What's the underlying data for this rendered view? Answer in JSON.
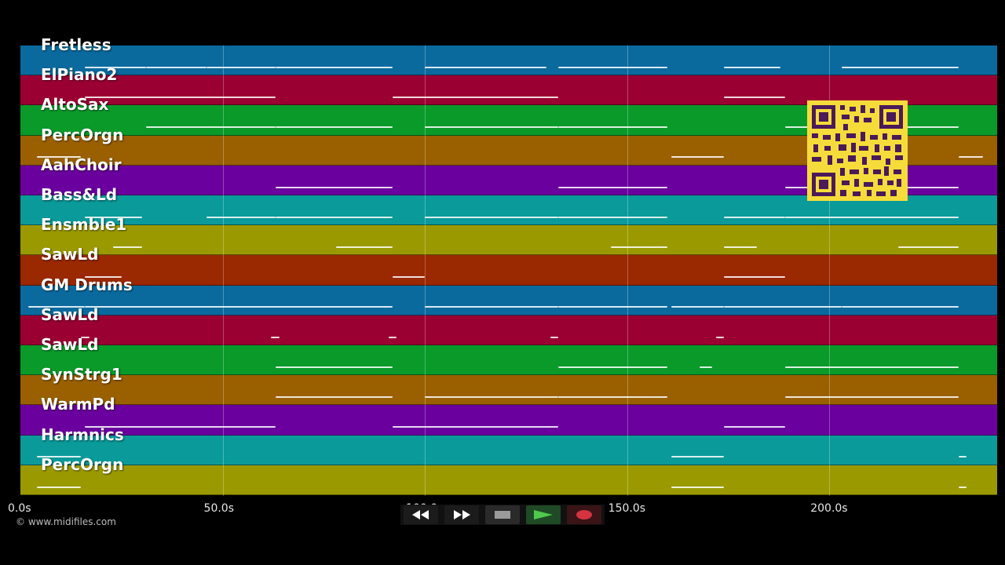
{
  "tracks": [
    {
      "name": "Fretless",
      "color": "#0a6a9e"
    },
    {
      "name": "ElPiano2",
      "color": "#9b0033"
    },
    {
      "name": "AltoSax",
      "color": "#0a9a2a"
    },
    {
      "name": "PercOrgn",
      "color": "#9a6000"
    },
    {
      "name": "AahChoir",
      "color": "#6a009e"
    },
    {
      "name": "Bass&Ld",
      "color": "#0a9a9a"
    },
    {
      "name": "Ensmble1",
      "color": "#9a9a00"
    },
    {
      "name": "SawLd",
      "color": "#9a2800"
    },
    {
      "name": "GM Drums",
      "color": "#0a6a9e"
    },
    {
      "name": "SawLd",
      "color": "#9b0033"
    },
    {
      "name": "SawLd",
      "color": "#0a9a2a"
    },
    {
      "name": "SynStrg1",
      "color": "#9a6000"
    },
    {
      "name": "WarmPd",
      "color": "#6a009e"
    },
    {
      "name": "Harmnics",
      "color": "#0a9a9a"
    },
    {
      "name": "PercOrgn",
      "color": "#9a9a00"
    }
  ],
  "timeline": {
    "max_seconds": 241.5,
    "ticks": [
      {
        "seconds": 0,
        "label": "0.0s"
      },
      {
        "seconds": 50,
        "label": "50.0s"
      },
      {
        "seconds": 100,
        "label": "100.0s"
      },
      {
        "seconds": 150,
        "label": "150.0s"
      },
      {
        "seconds": 200,
        "label": "200.0s"
      }
    ]
  },
  "note_segments": [
    [
      [
        16,
        31
      ],
      [
        31,
        46
      ],
      [
        46,
        63
      ],
      [
        63,
        92
      ],
      [
        100,
        130
      ],
      [
        133,
        160
      ],
      [
        174,
        188
      ],
      [
        203,
        232
      ]
    ],
    [
      [
        16,
        63
      ],
      [
        92,
        133
      ],
      [
        174,
        189
      ]
    ],
    [
      [
        31,
        63
      ],
      [
        63,
        92
      ],
      [
        100,
        133
      ],
      [
        133,
        160
      ],
      [
        189,
        232
      ]
    ],
    [
      [
        4,
        15
      ],
      [
        161,
        174
      ],
      [
        232,
        238
      ]
    ],
    [
      [
        63,
        92
      ],
      [
        133,
        160
      ],
      [
        189,
        232
      ]
    ],
    [
      [
        16,
        30
      ],
      [
        46,
        63
      ],
      [
        63,
        92
      ],
      [
        100,
        133
      ],
      [
        133,
        160
      ],
      [
        174,
        189
      ],
      [
        189,
        232
      ]
    ],
    [
      [
        23,
        30
      ],
      [
        78,
        92
      ],
      [
        146,
        160
      ],
      [
        174,
        182
      ],
      [
        217,
        232
      ]
    ],
    [
      [
        16,
        25
      ],
      [
        92,
        100
      ],
      [
        174,
        189
      ]
    ],
    [
      [
        2,
        16
      ],
      [
        16,
        92
      ],
      [
        100,
        133
      ],
      [
        133,
        160
      ],
      [
        161,
        174
      ],
      [
        174,
        203
      ],
      [
        203,
        232
      ]
    ],
    [
      [
        15,
        17
      ],
      [
        62,
        64
      ],
      [
        91,
        93
      ],
      [
        131,
        133
      ],
      [
        172,
        174
      ]
    ],
    [
      [
        63,
        92
      ],
      [
        133,
        160
      ],
      [
        168,
        171
      ],
      [
        189,
        232
      ]
    ],
    [
      [
        63,
        92
      ],
      [
        100,
        133
      ],
      [
        133,
        160
      ],
      [
        189,
        232
      ]
    ],
    [
      [
        16,
        63
      ],
      [
        92,
        133
      ],
      [
        174,
        189
      ]
    ],
    [
      [
        4,
        15
      ],
      [
        161,
        174
      ],
      [
        232,
        234
      ]
    ],
    [
      [
        4,
        15
      ],
      [
        161,
        174
      ],
      [
        232,
        234
      ]
    ]
  ],
  "credit": "© www.midifiles.com",
  "transport": [
    {
      "name": "rewind",
      "icon": "rewind-icon"
    },
    {
      "name": "fast-forward",
      "icon": "fast-forward-icon"
    },
    {
      "name": "stop",
      "icon": "stop-icon"
    },
    {
      "name": "play",
      "icon": "play-icon"
    },
    {
      "name": "record",
      "icon": "record-icon"
    }
  ]
}
